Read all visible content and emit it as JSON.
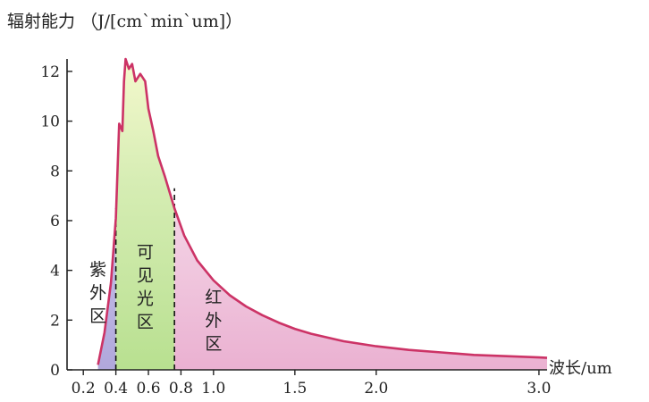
{
  "chart_data": {
    "type": "area",
    "ylabel": "辐射能力 （J/[cm`min`um]）",
    "xlabel": "波长/um",
    "xlim": [
      0.1,
      3.05
    ],
    "ylim": [
      0,
      12.5
    ],
    "x_ticks": [
      "0.2",
      "0.4",
      "0.6",
      "0.8",
      "1.0",
      "1.5",
      "2.0",
      "3.0"
    ],
    "y_ticks": [
      "0",
      "2",
      "4",
      "6",
      "8",
      "10",
      "12"
    ],
    "regions": [
      {
        "label_chars": [
          "紫",
          "外",
          "区"
        ],
        "range": [
          0.2,
          0.4
        ],
        "color": "#b0a8dc"
      },
      {
        "label_chars": [
          "可",
          "见",
          "光",
          "区"
        ],
        "range": [
          0.4,
          0.76
        ],
        "color": "#c8e8a0"
      },
      {
        "label_chars": [
          "红",
          "外",
          "区"
        ],
        "range": [
          0.76,
          3.05
        ],
        "color": "#eec0dc"
      }
    ],
    "dividers": [
      0.4,
      0.76
    ],
    "line_color": "#cc3366",
    "series": [
      {
        "x": [
          0.29,
          0.33,
          0.37,
          0.4,
          0.42,
          0.44,
          0.45,
          0.46,
          0.48,
          0.5,
          0.52,
          0.55,
          0.58,
          0.6,
          0.63,
          0.66,
          0.7,
          0.76,
          0.82,
          0.9,
          1.0,
          1.1,
          1.2,
          1.3,
          1.4,
          1.5,
          1.6,
          1.8,
          2.0,
          2.2,
          2.4,
          2.6,
          2.8,
          3.0,
          3.05
        ],
        "y": [
          0.2,
          1.5,
          3.5,
          6.1,
          9.9,
          9.6,
          11.6,
          12.5,
          12.1,
          12.3,
          11.6,
          11.9,
          11.6,
          10.5,
          9.6,
          8.6,
          7.8,
          6.5,
          5.4,
          4.4,
          3.6,
          3.0,
          2.55,
          2.2,
          1.9,
          1.65,
          1.45,
          1.15,
          0.95,
          0.8,
          0.7,
          0.6,
          0.55,
          0.5,
          0.48
        ]
      }
    ]
  }
}
